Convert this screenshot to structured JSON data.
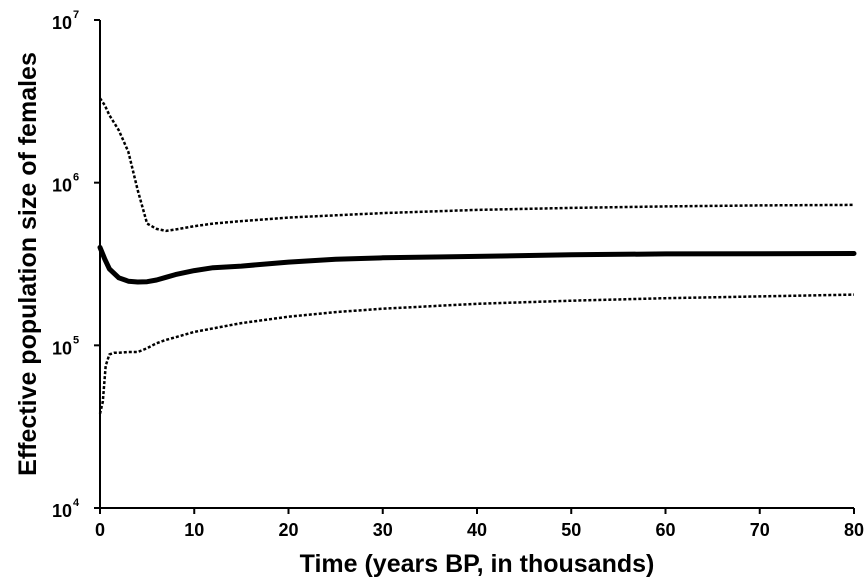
{
  "chart_data": {
    "type": "line",
    "title": "",
    "xlabel": "Time (years BP, in thousands)",
    "ylabel": "Effective population size of females",
    "xlim": [
      0,
      80
    ],
    "ylim": [
      10000,
      10000000
    ],
    "y_scale": "log",
    "grid": false,
    "legend": "none",
    "x_ticks": [
      0,
      10,
      20,
      30,
      40,
      50,
      60,
      70,
      80
    ],
    "y_ticks": [
      {
        "value": 10000,
        "base": "10",
        "exp": "4"
      },
      {
        "value": 100000,
        "base": "10",
        "exp": "5"
      },
      {
        "value": 1000000,
        "base": "10",
        "exp": "6"
      },
      {
        "value": 10000000,
        "base": "10",
        "exp": "7"
      }
    ],
    "series": [
      {
        "style": "dotted",
        "stroke_width": 2.5,
        "x": [
          0,
          0.5,
          1,
          2,
          3,
          4,
          5,
          6,
          7,
          8,
          10,
          12,
          15,
          20,
          25,
          30,
          40,
          50,
          60,
          70,
          80
        ],
        "y": [
          3300000,
          3000000,
          2600000,
          2100000,
          1550000,
          900000,
          560000,
          520000,
          505000,
          515000,
          540000,
          560000,
          580000,
          610000,
          630000,
          650000,
          680000,
          700000,
          715000,
          725000,
          730000
        ]
      },
      {
        "style": "solid",
        "stroke_width": 5,
        "x": [
          0,
          0.5,
          1,
          2,
          3,
          4,
          5,
          6,
          7,
          8,
          10,
          12,
          15,
          20,
          25,
          30,
          40,
          50,
          60,
          70,
          80
        ],
        "y": [
          400000,
          340000,
          295000,
          260000,
          248000,
          245000,
          246000,
          252000,
          262000,
          272000,
          288000,
          300000,
          307000,
          325000,
          338000,
          345000,
          352000,
          360000,
          365000,
          366000,
          367000
        ]
      },
      {
        "style": "dotted",
        "stroke_width": 2.5,
        "x": [
          0,
          0.3,
          0.6,
          1,
          1.5,
          2,
          3,
          4,
          5,
          6,
          7,
          8,
          10,
          12,
          15,
          20,
          25,
          30,
          40,
          50,
          60,
          70,
          80
        ],
        "y": [
          38000,
          45000,
          75000,
          88000,
          90000,
          90000,
          91000,
          91000,
          96000,
          103000,
          108000,
          112000,
          121000,
          127000,
          137000,
          150000,
          160000,
          168000,
          180000,
          188000,
          195000,
          200000,
          205000
        ]
      }
    ]
  },
  "colors": {
    "line": "#000000",
    "axis": "#000000",
    "background": "#ffffff"
  }
}
